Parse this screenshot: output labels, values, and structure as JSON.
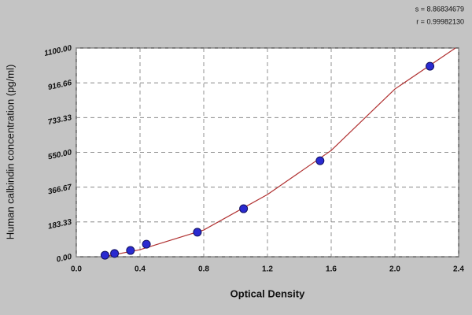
{
  "chart_data": {
    "type": "scatter",
    "annotations": [
      "s = 8.86834679",
      "r = 0.99982130"
    ],
    "xlabel": "Optical Density",
    "ylabel": "Human calbindin concentration (pg/ml)",
    "x": [
      0.18,
      0.24,
      0.34,
      0.44,
      0.76,
      1.05,
      1.53,
      2.22
    ],
    "values": [
      8,
      17,
      33,
      66,
      129,
      253,
      506,
      1004
    ],
    "color": "#2a2ad0",
    "curve": {
      "x": [
        0.17,
        0.4,
        0.8,
        1.2,
        1.6,
        2.0,
        2.38
      ],
      "values": [
        0,
        37,
        141,
        328,
        560,
        884,
        1100
      ],
      "color": "#b03030"
    },
    "xlim": [
      0,
      2.4
    ],
    "xticks": [
      {
        "value": 0,
        "label": "0.0"
      },
      0.4,
      0.8,
      1.2,
      1.6,
      {
        "value": 2,
        "label": "2.0"
      },
      2.4
    ],
    "ylim": [
      0,
      1100
    ],
    "yticks": [
      {
        "value": 0,
        "label": "0.00"
      },
      183.33,
      366.67,
      {
        "value": 550,
        "label": "550.00"
      },
      733.33,
      916.66,
      {
        "value": 1100,
        "label": "1100.00"
      }
    ],
    "grid": true
  }
}
